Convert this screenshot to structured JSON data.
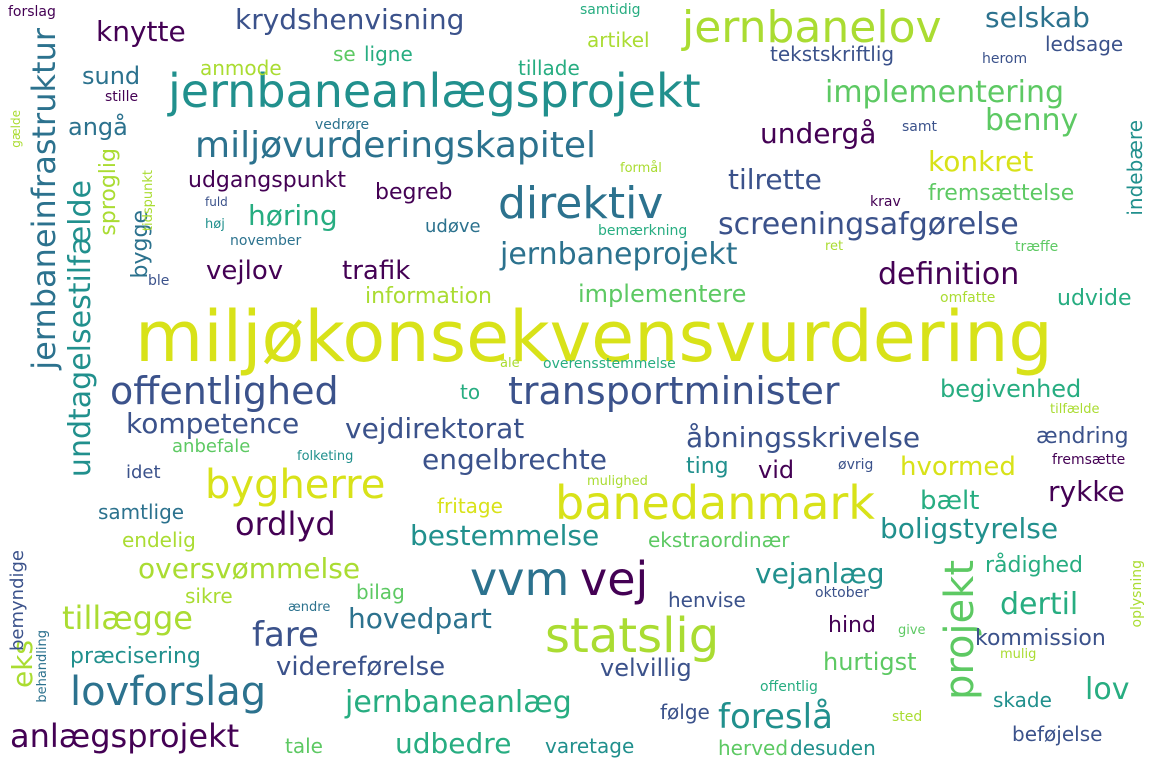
{
  "words": {
    "w1": "miljøkonsekvensvurdering",
    "w2": "jernbaneanlægsprojekt",
    "w3": "statslig",
    "w4": "vvm",
    "w5": "vej",
    "w6": "banedanmark",
    "w7": "transportminister",
    "w8": "offentlighed",
    "w9": "direktiv",
    "w10": "lovforslag",
    "w11": "miljøvurderingskapitel",
    "w12": "jernbanelov",
    "w13": "bygherre",
    "w14": "projekt",
    "w15": "jernbaneinfrastruktur",
    "w16": "undtagelsestilfælde",
    "w17": "krydshenvisning",
    "w18": "implementering",
    "w19": "screeningsafgørelse",
    "w20": "jernbaneprojekt",
    "w21": "ordlyd",
    "w22": "anlægsprojekt",
    "w23": "jernbaneanlæg",
    "w24": "fare",
    "w25": "foreslå",
    "w26": "oversvømmelse",
    "w27": "bestemmelse",
    "w28": "vejdirektorat",
    "w29": "åbningsskrivelse",
    "w30": "engelbrechte",
    "w31": "definition",
    "w32": "tilrette",
    "w33": "knytte",
    "w34": "selskab",
    "w35": "tillægge",
    "w36": "vejanlæg",
    "w37": "dertil",
    "w38": "undergå",
    "w39": "konkret",
    "w40": "benny",
    "w41": "høring",
    "w42": "vejlov",
    "w43": "trafik",
    "w44": "kompetence",
    "w45": "hovedpart",
    "w46": "videreførelse",
    "w47": "boligstyrelse",
    "w48": "rykke",
    "w49": "bælt",
    "w50": "hvormed",
    "w51": "begivenhed",
    "w52": "lov",
    "w53": "udbedre",
    "w54": "eks",
    "w55": "sproglig",
    "w56": "bygge",
    "w57": "sund",
    "w58": "angå",
    "w59": "implementere",
    "w60": "begreb",
    "w61": "udgangspunkt",
    "w62": "fremsættelse",
    "w63": "indebære",
    "w64": "information",
    "w65": "udvide",
    "w66": "ændring",
    "w67": "præcisering",
    "w68": "velvillig",
    "w69": "hurtigst",
    "w70": "kommission",
    "w71": "hind",
    "w72": "rådighed",
    "w73": "vid",
    "w74": "ting",
    "w75": "tekstskriftlig",
    "w76": "ledsage",
    "w77": "artikel",
    "w78": "tillade",
    "w79": "anmode",
    "w80": "se",
    "w81": "ligne",
    "w82": "samtlige",
    "w83": "fritage",
    "w84": "endelig",
    "w85": "ekstraordinær",
    "w86": "sikre",
    "w87": "bilag",
    "w88": "henvise",
    "w89": "bemyndige",
    "w90": "skade",
    "w91": "følge",
    "w92": "varetage",
    "w93": "herved",
    "w94": "desuden",
    "w95": "beføjelse",
    "w96": "tale",
    "w97": "anbefale",
    "w98": "idet",
    "w99": "to",
    "w100": "udøve",
    "w101": "forslag",
    "w102": "samtidig",
    "w103": "herom",
    "w104": "stille",
    "w105": "vedrøre",
    "w106": "samt",
    "w107": "gælde",
    "w108": "tidspunkt",
    "w109": "formål",
    "w110": "fuld",
    "w111": "krav",
    "w112": "høj",
    "w113": "november",
    "w114": "bemærkning",
    "w115": "ret",
    "w116": "træffe",
    "w117": "ble",
    "w118": "omfatte",
    "w119": "ale",
    "w120": "overensstemmelse",
    "w121": "tilfælde",
    "w122": "folketing",
    "w123": "øvrig",
    "w124": "fremsætte",
    "w125": "mulighed",
    "w126": "behandling",
    "w127": "ændre",
    "w128": "oktober",
    "w129": "give",
    "w130": "mulig",
    "w131": "oplysning",
    "w132": "offentlig",
    "w133": "sted"
  }
}
